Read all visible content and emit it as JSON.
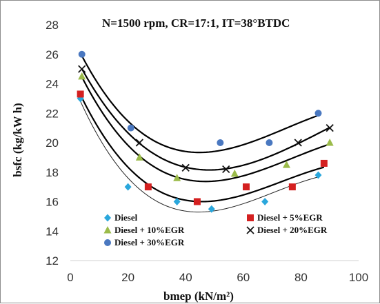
{
  "chart_data": {
    "type": "scatter",
    "title": "N=1500 rpm, CR=17:1, IT=38°BTDC",
    "xlabel": "bmep (kN/m²)",
    "ylabel": "bsfc (kg/kW h)",
    "xlim": [
      0,
      100
    ],
    "ylim": [
      12,
      28
    ],
    "xticks": [
      0,
      20,
      40,
      60,
      80,
      100
    ],
    "yticks": [
      12,
      14,
      16,
      18,
      20,
      22,
      24,
      26,
      28
    ],
    "grid": false,
    "legend_position": "bottom-inside",
    "trendline": "polynomial",
    "series": [
      {
        "name": "Diesel",
        "marker": "diamond",
        "color": "#2aa7dc",
        "curve_color": "#222222",
        "curve_width": 1,
        "x": [
          3.5,
          20,
          37,
          49,
          67.5,
          86
        ],
        "y": [
          23,
          17,
          16,
          15.5,
          16,
          17.8
        ]
      },
      {
        "name": "Diesel + 5%EGR",
        "marker": "square",
        "color": "#d42020",
        "curve_color": "#000000",
        "curve_width": 2.2,
        "x": [
          3.5,
          27,
          44,
          61,
          77,
          88
        ],
        "y": [
          23.3,
          17,
          16,
          17,
          17,
          18.6
        ]
      },
      {
        "name": "Diesel + 10%EGR",
        "marker": "triangle",
        "color": "#9bbb4a",
        "curve_color": "#000000",
        "curve_width": 2.2,
        "x": [
          4,
          24,
          37,
          57,
          75,
          90
        ],
        "y": [
          24.5,
          19,
          17.6,
          17.9,
          18.5,
          20
        ]
      },
      {
        "name": "Diesel + 20%EGR",
        "marker": "x",
        "color": "#111111",
        "curve_color": "#000000",
        "curve_width": 2.2,
        "x": [
          4,
          24,
          40,
          54,
          79,
          90
        ],
        "y": [
          25,
          20,
          18.3,
          18.2,
          20,
          21
        ]
      },
      {
        "name": "Diesel + 30%EGR",
        "marker": "circle",
        "color": "#4a78c0",
        "curve_color": "#000000",
        "curve_width": 2.2,
        "x": [
          4,
          21,
          52,
          69,
          86
        ],
        "y": [
          26,
          21,
          20,
          20,
          22
        ]
      }
    ]
  }
}
